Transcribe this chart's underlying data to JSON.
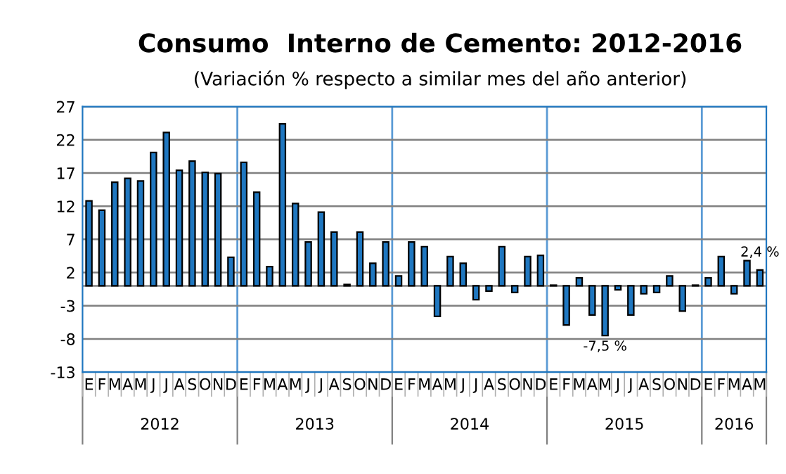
{
  "chart_data": {
    "type": "bar",
    "title": "Consumo  Interno de Cemento: 2012-2016",
    "subtitle": "(Variación % respecto a similar mes del año anterior)",
    "categories": [
      "E",
      "F",
      "M",
      "A",
      "M",
      "J",
      "J",
      "A",
      "S",
      "O",
      "N",
      "D",
      "E",
      "F",
      "M",
      "A",
      "M",
      "J",
      "J",
      "A",
      "S",
      "O",
      "N",
      "D",
      "E",
      "F",
      "M",
      "A",
      "M",
      "J",
      "J",
      "A",
      "S",
      "O",
      "N",
      "D",
      "E",
      "F",
      "M",
      "A",
      "M",
      "J",
      "J",
      "A",
      "S",
      "O",
      "N",
      "D",
      "E",
      "F",
      "M",
      "A",
      "M"
    ],
    "values": [
      12.8,
      11.4,
      15.6,
      16.2,
      15.8,
      20.1,
      23.1,
      17.4,
      18.8,
      17.1,
      16.9,
      4.3,
      18.6,
      14.1,
      2.9,
      24.4,
      12.4,
      6.6,
      11.1,
      8.1,
      0.2,
      8.1,
      3.4,
      6.6,
      1.5,
      6.6,
      5.9,
      -4.6,
      4.4,
      3.4,
      -2.1,
      -0.8,
      5.9,
      -1.0,
      4.4,
      4.6,
      0.1,
      -5.9,
      1.2,
      -4.4,
      -7.5,
      -0.6,
      -4.4,
      -1.2,
      -1.0,
      1.5,
      -3.8,
      0.1,
      1.2,
      4.4,
      -1.2,
      3.8,
      2.4
    ],
    "value_labels": [
      null,
      null,
      null,
      null,
      null,
      null,
      null,
      null,
      null,
      null,
      null,
      null,
      null,
      null,
      null,
      null,
      null,
      null,
      null,
      null,
      null,
      null,
      null,
      null,
      null,
      null,
      null,
      null,
      null,
      null,
      null,
      null,
      null,
      null,
      null,
      null,
      null,
      null,
      null,
      null,
      "-7,5 %",
      null,
      null,
      null,
      null,
      null,
      null,
      null,
      null,
      null,
      null,
      null,
      "2,4 %"
    ],
    "color": "#1f77c0",
    "annotations": [
      "2012",
      "2013",
      "2014",
      "2015",
      "2016"
    ],
    "ylim": [
      -13,
      27
    ],
    "yticks": [
      -13,
      -8,
      -3,
      2,
      7,
      12,
      17,
      22,
      27
    ],
    "grid": "y"
  }
}
